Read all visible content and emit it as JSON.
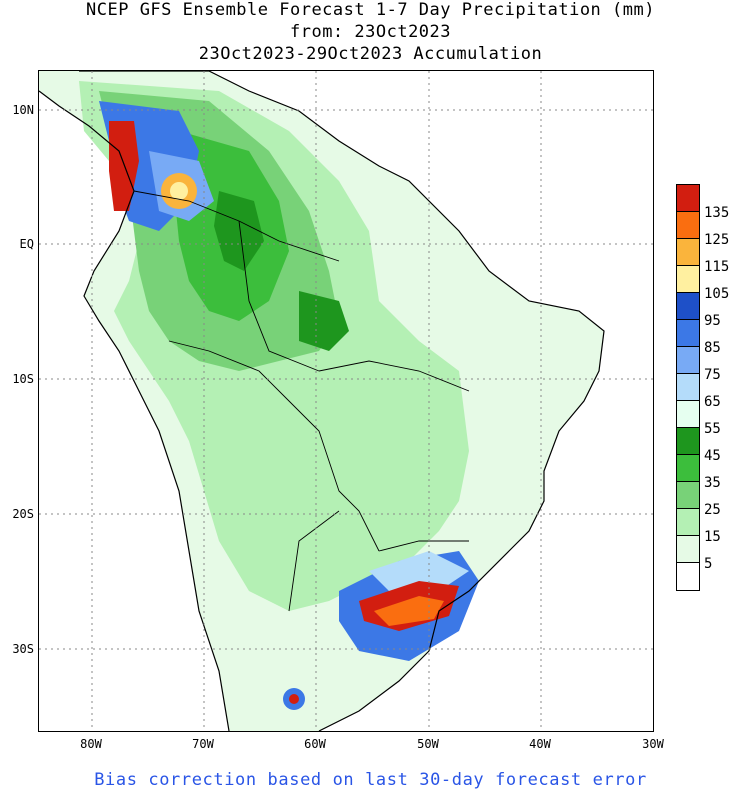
{
  "title": {
    "line1": "NCEP GFS Ensemble Forecast 1-7 Day Precipitation (mm)",
    "line2": "from: 23Oct2023",
    "line3": "23Oct2023-29Oct2023 Accumulation"
  },
  "axes": {
    "lat_labels": [
      "10N",
      "EQ",
      "10S",
      "20S",
      "30S"
    ],
    "lon_labels": [
      "80W",
      "70W",
      "60W",
      "50W",
      "40W",
      "30W"
    ]
  },
  "legend": {
    "labels": [
      "135",
      "125",
      "115",
      "105",
      "95",
      "85",
      "75",
      "65",
      "55",
      "45",
      "35",
      "25",
      "15",
      "5"
    ],
    "colors": [
      "#d21e10",
      "#fa6e10",
      "#fab43c",
      "#fff0a0",
      "#1e50c8",
      "#3c78e6",
      "#78aaf5",
      "#b4dcfa",
      "#e6fff0",
      "#1e961e",
      "#3cbe3c",
      "#78d278",
      "#b4f0b4",
      "#e6fae6",
      "#ffffff"
    ]
  },
  "footnote": "Bias correction based on last 30-day forecast error"
}
